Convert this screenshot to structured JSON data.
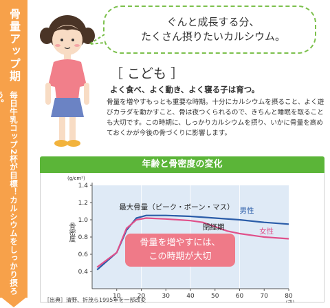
{
  "sidebar": {
    "title": "骨量アップ期",
    "subtitle": "毎日牛乳コップ2杯が目標！カルシウムをしっかり摂ろう。"
  },
  "bubble": {
    "line1": "ぐんと成長する分、",
    "line2": "たくさん摂りたいカルシウム。"
  },
  "heading": "［ こども ］",
  "subheading": "よく食べ、よく動き、よく寝る子は育つ。",
  "body": "骨量を増やすもっとも重要な時期。十分にカルシウムを摂ること、よく遊びカラダを動かすこと、骨は夜つくられるので、きちんと睡眠を取ることも大切です。この時期に、しっかりカルシウムを摂り、いかに骨量を高めておくかが今後の骨づくりに影響します。",
  "chart_title": "年齢と骨密度の変化",
  "chart_data": {
    "type": "line",
    "y_unit": "(g/cm²)",
    "x_unit": "(歳)",
    "ylabel": "骨密度",
    "xlim": [
      0,
      80
    ],
    "ylim": [
      0.2,
      1.4
    ],
    "x_ticks": [
      "10",
      "20",
      "30",
      "40",
      "50",
      "60",
      "70",
      "80"
    ],
    "y_ticks": [
      "0.4",
      "0.6",
      "0.8",
      "1.0",
      "1.2",
      "1.4"
    ],
    "series": [
      {
        "name": "男性",
        "color": "#2a5ca8",
        "x": [
          2,
          10,
          14,
          18,
          22,
          30,
          40,
          50,
          60,
          70,
          80
        ],
        "y": [
          0.42,
          0.62,
          0.88,
          1.02,
          1.05,
          1.05,
          1.04,
          1.02,
          1.0,
          0.97,
          0.95
        ]
      },
      {
        "name": "女性",
        "color": "#e0508a",
        "x": [
          2,
          10,
          14,
          18,
          22,
          30,
          40,
          45,
          50,
          55,
          60,
          70,
          80
        ],
        "y": [
          0.45,
          0.62,
          0.9,
          1.0,
          1.02,
          1.01,
          0.99,
          0.97,
          0.92,
          0.87,
          0.84,
          0.8,
          0.78
        ]
      }
    ],
    "annotations": [
      {
        "text": "最大骨量（ピーク・ボーン・マス）"
      },
      {
        "text": "閉経期"
      },
      {
        "text": "骨量を増やすには、この時期が大切"
      }
    ],
    "highlight_range": [
      0,
      80
    ]
  },
  "callout": {
    "line1": "骨量を増やすには、",
    "line2": "この時期が大切"
  },
  "source": "［出典］清野、折茂ら1995年を一部改変",
  "colors": {
    "side_band": "#f7a14a",
    "bubble_border": "#7cc04c",
    "chart_banner": "#5bb538",
    "chart_bg": "#dfeaf6",
    "callout": "#ef7a88"
  }
}
